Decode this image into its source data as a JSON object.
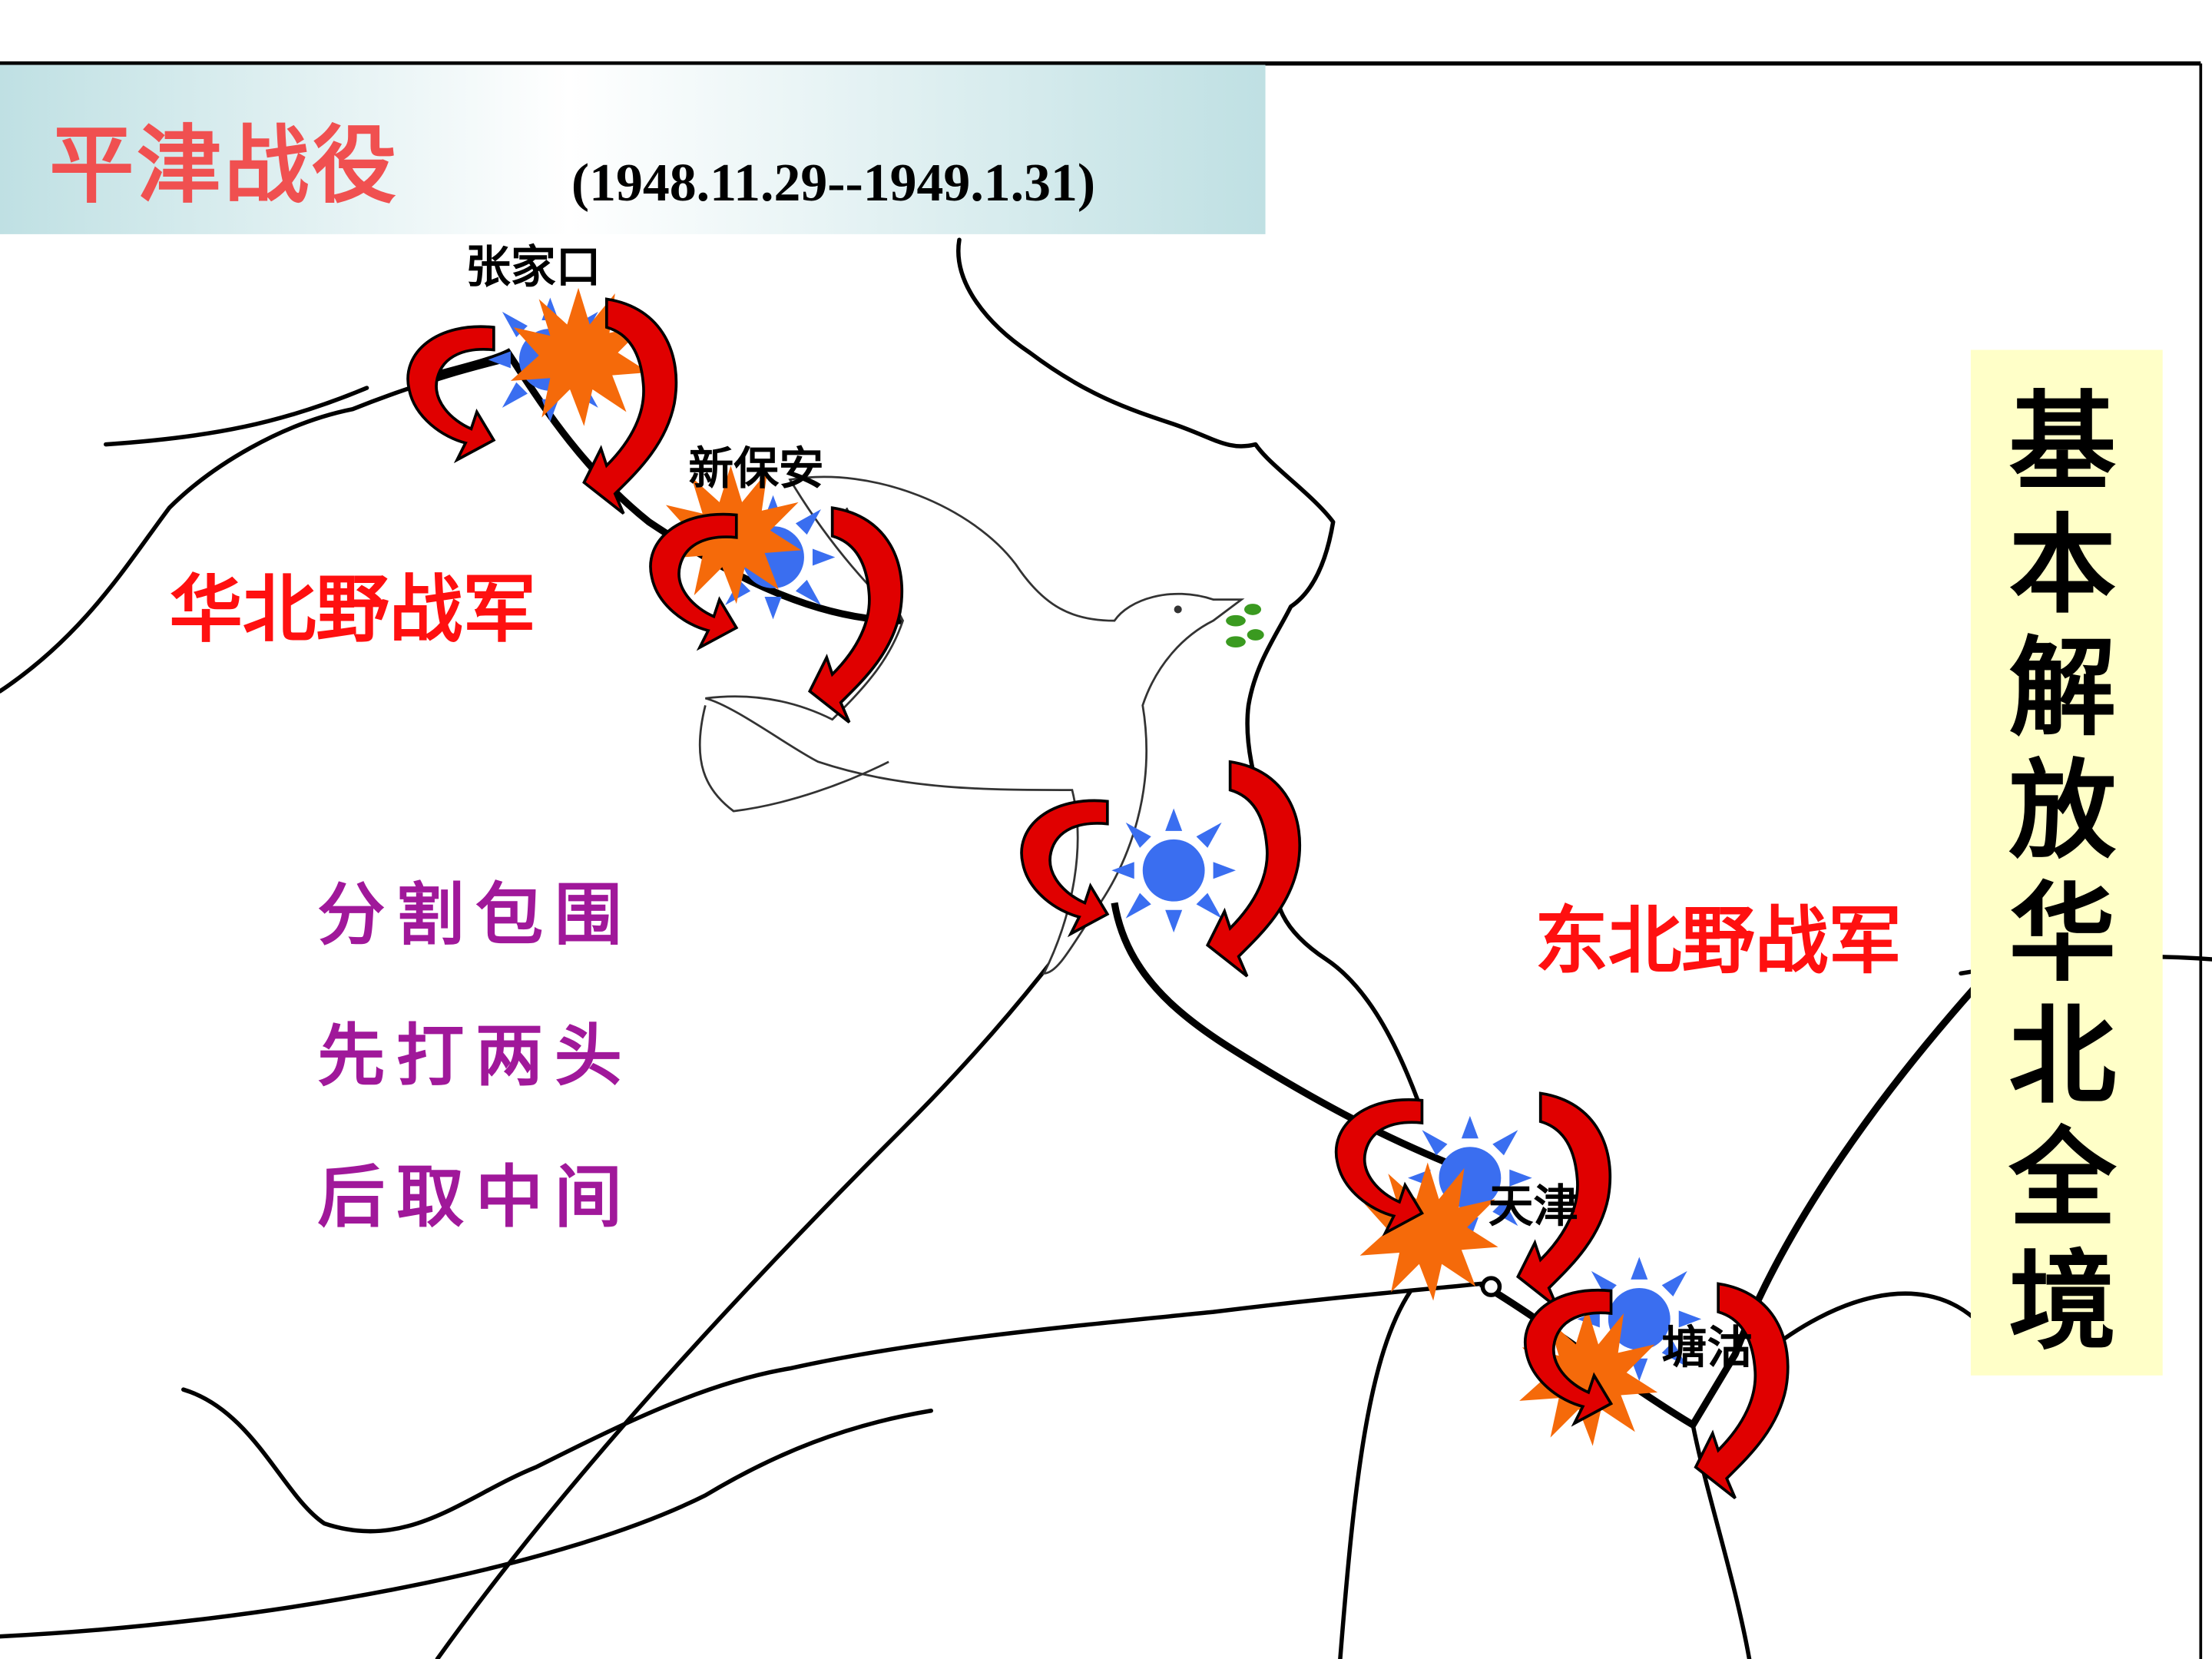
{
  "title": {
    "main": "平津战役",
    "dates": "(1948.11.29--1949.1.31)"
  },
  "places": {
    "zhangjiakou": "张家口",
    "xinbaoan": "新保安",
    "tianjin": "天津",
    "tanggu": "塘沽"
  },
  "armies": {
    "north_china": "华北野战军",
    "northeast": "东北野战军"
  },
  "strategy": [
    "分割包围",
    "先打两头",
    "后取中间"
  ],
  "side_banner": [
    "基",
    "本",
    "解",
    "放",
    "华",
    "北",
    "全",
    "境"
  ],
  "colors": {
    "title_red": "#f05050",
    "army_red": "#ff1010",
    "strategy_purple": "#a0189a",
    "banner_bg": "#ffffc8",
    "title_bg": "#bfe0e3",
    "sun_blue": "#3a6ef0",
    "explosion_orange": "#f56a0a",
    "arrow_red": "#e00000"
  },
  "icons": {
    "enemy_marker": "blue-sun-icon",
    "attack_marker": "explosion-icon",
    "encircle_marker": "curved-arrow-icon",
    "peace_marker": "dove-icon"
  }
}
